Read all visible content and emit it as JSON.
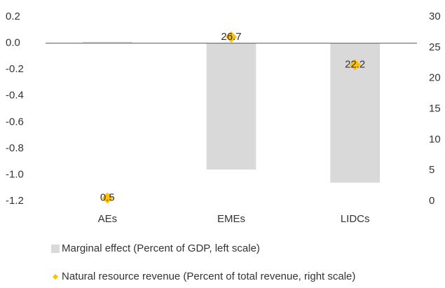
{
  "chart_data": {
    "type": "combo",
    "categories": [
      "AEs",
      "EMEs",
      "LIDCs"
    ],
    "series": [
      {
        "name": "Marginal effect (Percent of GDP, left scale)",
        "type": "bar",
        "axis": "y",
        "color": "#d9d9d9",
        "values": [
          0.01,
          -0.96,
          -1.06
        ]
      },
      {
        "name": "Natural resource revenue (Percent of total revenue, right scale)",
        "type": "scatter",
        "axis": "y2",
        "color": "#ffc000",
        "values": [
          0.5,
          26.7,
          22.2
        ]
      }
    ],
    "ylim": [
      -1.2,
      0.2
    ],
    "yticks": [
      {
        "value": 0.2,
        "label": "0.2"
      },
      {
        "value": 0,
        "label": "0.0"
      },
      {
        "value": -0.2,
        "label": "-0.2"
      },
      {
        "value": -0.4,
        "label": "-0.4"
      },
      {
        "value": -0.6,
        "label": "-0.6"
      },
      {
        "value": -0.8,
        "label": "-0.8"
      },
      {
        "value": -1,
        "label": "-1.0"
      },
      {
        "value": -1.2,
        "label": "-1.2"
      }
    ],
    "y2lim": [
      0,
      30
    ],
    "y2ticks": [
      0,
      5,
      10,
      15,
      20,
      25,
      30
    ],
    "grid": false,
    "legend": "bottom"
  }
}
